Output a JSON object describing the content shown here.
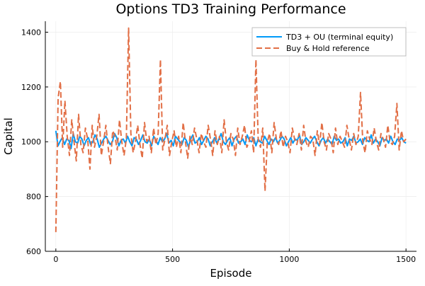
{
  "chart_data": {
    "type": "line",
    "title": "Options TD3 Training Performance",
    "xlabel": "Episode",
    "ylabel": "Capital",
    "xlim": [
      -45,
      1545
    ],
    "ylim": [
      600,
      1440
    ],
    "xticks": [
      0,
      500,
      1000,
      1500
    ],
    "yticks": [
      600,
      800,
      1000,
      1200,
      1400
    ],
    "grid": true,
    "legend_position": "top-right",
    "series": [
      {
        "name": "TD3 + OU (terminal equity)",
        "color": "#009af9",
        "style": "solid",
        "values": [
          1040,
          985,
          1002,
          1015,
          990,
          1010,
          1005,
          975,
          1030,
          1000,
          995,
          1020,
          1010,
          985,
          1005,
          1015,
          990,
          1000,
          1025,
          1010,
          980,
          995,
          1010,
          1020,
          1005,
          990,
          1000,
          1030,
          1015,
          985,
          1005,
          1010,
          995,
          1020,
          1000,
          985,
          1015,
          1010,
          990,
          1005,
          1025,
          1000,
          995,
          1010,
          985,
          1020,
          1005,
          990,
          1015,
          1000,
          1010,
          1030,
          995,
          1005,
          985,
          1020,
          1010,
          1000,
          990,
          1015,
          1005,
          980,
          1010,
          1025,
          995,
          1000,
          1015,
          990,
          1005,
          1020,
          1010,
          985,
          1000,
          1015,
          995,
          1010,
          1030,
          1000,
          990,
          1005,
          1015,
          985,
          1010,
          1020,
          995,
          1000,
          1010,
          990,
          1025,
          1005,
          1000,
          1015,
          985,
          1010,
          1000,
          995,
          1020,
          1005,
          990,
          1010,
          1000,
          1015,
          995,
          1005,
          1020,
          1010,
          985,
          1000,
          1015,
          995,
          1010,
          1005,
          1025,
          990,
          1000,
          1015,
          1005,
          995,
          1010,
          1020,
          1000,
          985,
          1005,
          1015,
          995,
          1010,
          1000,
          990,
          1020,
          1005,
          1010,
          995,
          1000,
          1015,
          985,
          1010,
          1005,
          1020,
          995,
          1000,
          1010,
          990,
          1015,
          1005,
          1000,
          1025,
          995,
          1010,
          1000,
          985,
          1015,
          1005,
          1010,
          995,
          1020,
          1000,
          990,
          1010,
          1005,
          1015,
          1000,
          995
        ]
      },
      {
        "name": "Buy & Hold reference",
        "color": "#e26f46",
        "style": "dashed",
        "values": [
          670,
          1160,
          1220,
          980,
          1150,
          1020,
          950,
          1080,
          1000,
          930,
          1100,
          990,
          960,
          1050,
          1010,
          900,
          1060,
          980,
          1020,
          1100,
          950,
          1000,
          1060,
          980,
          920,
          1040,
          1020,
          970,
          1080,
          1000,
          950,
          1010,
          1415,
          1030,
          960,
          1000,
          1060,
          990,
          940,
          1070,
          1000,
          1020,
          960,
          1050,
          990,
          1030,
          1300,
          970,
          1010,
          1060,
          950,
          1000,
          1040,
          980,
          1020,
          960,
          1070,
          1000,
          940,
          1020,
          990,
          1050,
          1010,
          960,
          1030,
          1000,
          980,
          1060,
          1010,
          950,
          1040,
          990,
          1020,
          960,
          1080,
          1000,
          970,
          1030,
          1010,
          950,
          1050,
          990,
          1020,
          1060,
          980,
          1000,
          1040,
          960,
          1300,
          1010,
          980,
          1050,
          820,
          1000,
          1030,
          960,
          1070,
          1010,
          990,
          1040,
          980,
          1020,
          1000,
          960,
          1050,
          1010,
          990,
          1030,
          970,
          1060,
          1000,
          980,
          1020,
          1010,
          950,
          1040,
          990,
          1070,
          1000,
          970,
          1030,
          1010,
          960,
          1050,
          990,
          1020,
          1000,
          980,
          1060,
          1010,
          970,
          1030,
          990,
          1020,
          1180,
          1000,
          960,
          1040,
          1010,
          990,
          1050,
          1000,
          970,
          1030,
          1010,
          980,
          1060,
          1000,
          990,
          1020,
          1140,
          970,
          1040,
          1000,
          1010
        ]
      }
    ]
  }
}
